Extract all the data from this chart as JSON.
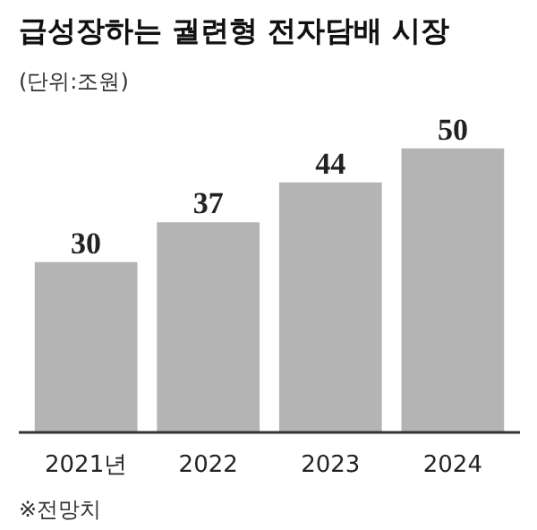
{
  "chart_data": {
    "type": "bar",
    "title": "급성장하는 궐련형 전자담배 시장",
    "subtitle": "(단위:조원)",
    "categories": [
      "2021년",
      "2022",
      "2023",
      "2024"
    ],
    "values": [
      30,
      37,
      44,
      50
    ],
    "color": "#b4b4b4",
    "data_labels": true,
    "annotations": [
      "※전망치"
    ]
  }
}
